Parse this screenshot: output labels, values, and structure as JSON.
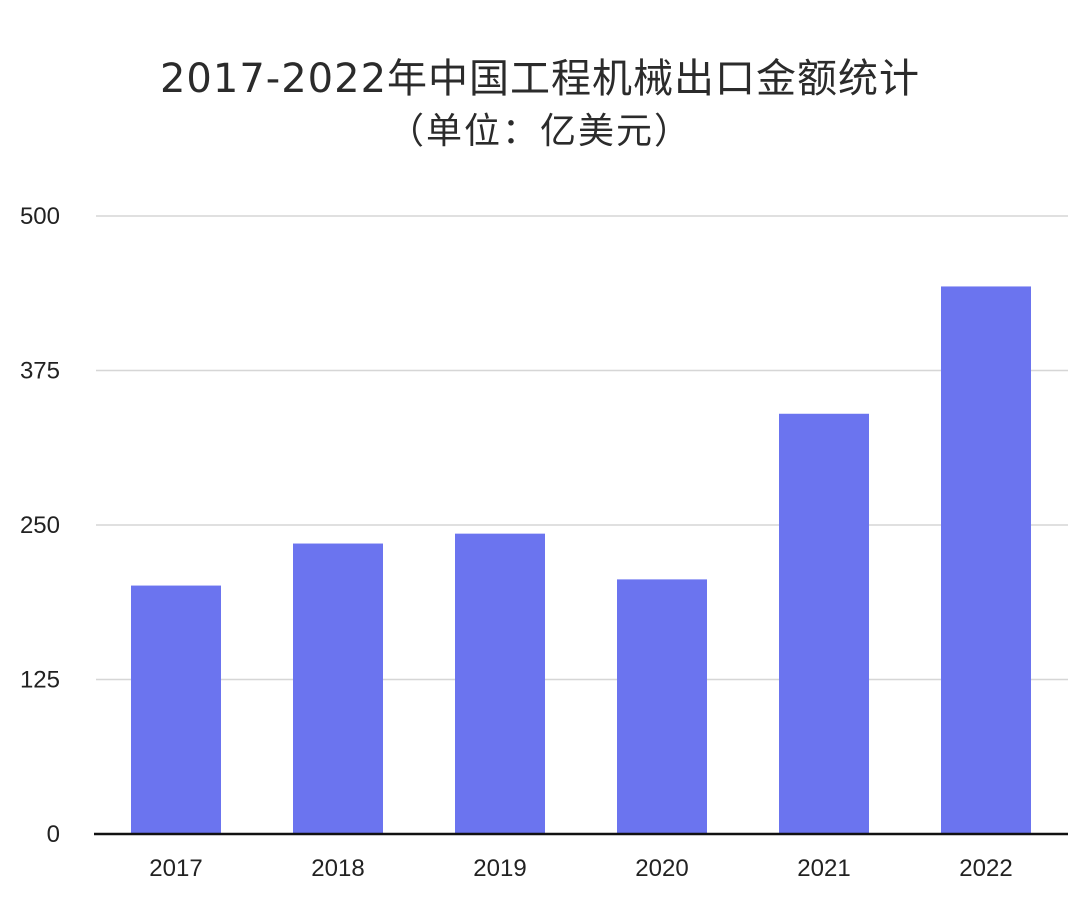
{
  "chart_data": {
    "type": "bar",
    "title": "2017-2022年中国工程机械出口金额统计",
    "subtitle": "（单位：亿美元）",
    "categories": [
      "2017",
      "2018",
      "2019",
      "2020",
      "2021",
      "2022"
    ],
    "values": [
      201,
      235,
      243,
      206,
      340,
      443
    ],
    "ylim": [
      0,
      500
    ],
    "yticks": [
      0,
      125,
      250,
      375,
      500
    ],
    "grid": true,
    "legend": "none",
    "bar_color": "#6b74ef",
    "grid_color": "#d6d6d6",
    "axis_color": "#111111"
  }
}
